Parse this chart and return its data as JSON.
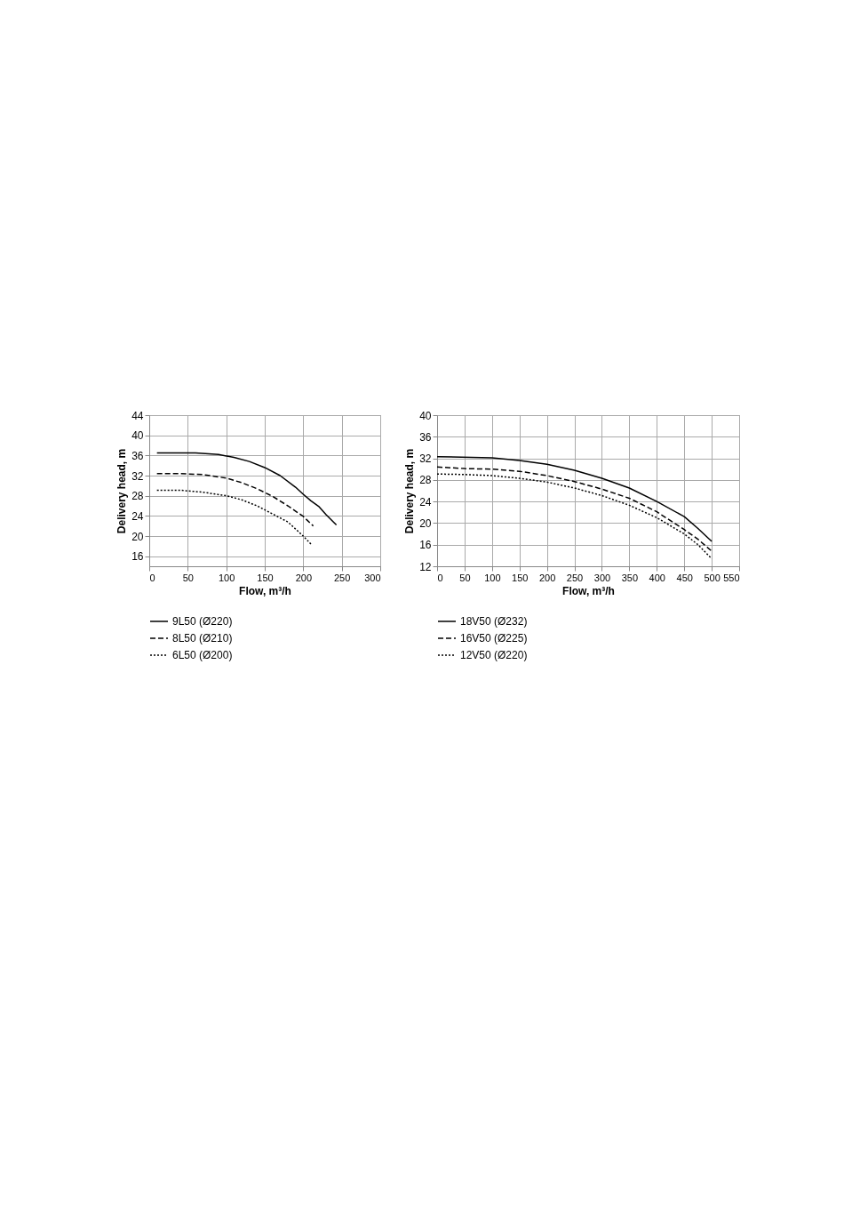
{
  "chart_data": [
    {
      "type": "line",
      "xlabel": "Flow, m³/h",
      "ylabel": "Delivery head, m",
      "xlim": [
        0,
        300
      ],
      "xticks": [
        0,
        50,
        100,
        150,
        200,
        250,
        300
      ],
      "ylim": [
        14,
        44
      ],
      "yticks": [
        16,
        20,
        24,
        28,
        32,
        36,
        40,
        44
      ],
      "grid": true,
      "legend": "bottom",
      "marker": "none",
      "series": [
        {
          "name": "9L50 (Ø220)",
          "color": "#000000",
          "line_style": "solid",
          "x": [
            10,
            60,
            90,
            110,
            130,
            150,
            170,
            190,
            200,
            210,
            220,
            230,
            243
          ],
          "values": [
            36.5,
            36.5,
            36.2,
            35.6,
            34.8,
            33.6,
            32.0,
            29.7,
            28.3,
            27.0,
            25.9,
            24.2,
            22.2
          ]
        },
        {
          "name": "8L50 (Ø210)",
          "color": "#000000",
          "line_style": "dashed",
          "x": [
            10,
            40,
            70,
            100,
            120,
            140,
            160,
            180,
            200,
            213
          ],
          "values": [
            32.4,
            32.4,
            32.2,
            31.5,
            30.6,
            29.4,
            27.9,
            26.0,
            23.9,
            22.0
          ]
        },
        {
          "name": "6L50 (Ø200)",
          "color": "#000000",
          "line_style": "dotted",
          "x": [
            10,
            40,
            70,
            100,
            120,
            140,
            160,
            180,
            200,
            210
          ],
          "values": [
            29.1,
            29.1,
            28.7,
            28.0,
            27.2,
            26.0,
            24.4,
            22.8,
            20.0,
            18.4
          ]
        }
      ]
    },
    {
      "type": "line",
      "xlabel": "Flow, m³/h",
      "ylabel": "Delivery head, m",
      "xlim": [
        0,
        550
      ],
      "xticks": [
        0,
        50,
        100,
        150,
        200,
        250,
        300,
        350,
        400,
        450,
        500,
        550
      ],
      "ylim": [
        12,
        40
      ],
      "yticks": [
        12,
        16,
        20,
        24,
        28,
        32,
        36,
        40
      ],
      "grid": true,
      "legend": "bottom",
      "marker": "none",
      "series": [
        {
          "name": "18V50 (Ø232)",
          "color": "#000000",
          "line_style": "solid",
          "x": [
            0,
            100,
            150,
            200,
            250,
            300,
            350,
            400,
            450,
            475,
            500
          ],
          "values": [
            32.3,
            32.1,
            31.6,
            30.9,
            29.8,
            28.3,
            26.5,
            24.0,
            21.2,
            19.0,
            16.6
          ]
        },
        {
          "name": "16V50 (Ø225)",
          "color": "#000000",
          "line_style": "dashed",
          "x": [
            0,
            50,
            100,
            150,
            200,
            250,
            300,
            350,
            400,
            450,
            475,
            500
          ],
          "values": [
            30.4,
            30.1,
            30.0,
            29.6,
            28.8,
            27.7,
            26.3,
            24.6,
            22.1,
            18.8,
            17.0,
            14.8
          ]
        },
        {
          "name": "12V50 (Ø220)",
          "color": "#000000",
          "line_style": "dotted",
          "x": [
            0,
            50,
            100,
            150,
            200,
            250,
            300,
            350,
            400,
            450,
            475,
            500
          ],
          "values": [
            29.1,
            29.0,
            28.8,
            28.3,
            27.6,
            26.5,
            25.1,
            23.3,
            21.0,
            18.0,
            16.0,
            13.4
          ]
        }
      ]
    }
  ]
}
